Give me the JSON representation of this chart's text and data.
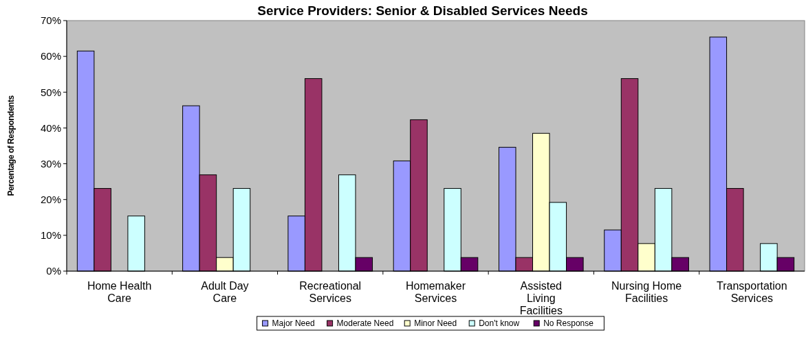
{
  "chart_data": {
    "type": "bar",
    "title": "Service Providers: Senior & Disabled Services Needs",
    "ylabel": "Percentage of Respondents",
    "categories": [
      "Home Health Care",
      "Adult Day Care",
      "Recreational Services",
      "Homemaker Services",
      "Assisted Living Facilities",
      "Nursing Home Facilities",
      "Transportation Services"
    ],
    "series": [
      {
        "name": "Major Need",
        "color": "#9999ff",
        "values": [
          61.5,
          46.2,
          15.4,
          30.8,
          34.6,
          11.5,
          65.4
        ]
      },
      {
        "name": "Moderate Need",
        "color": "#993366",
        "values": [
          23.1,
          26.9,
          53.8,
          42.3,
          3.8,
          53.8,
          23.1
        ]
      },
      {
        "name": "Minor Need",
        "color": "#ffffcc",
        "values": [
          null,
          3.8,
          null,
          null,
          38.5,
          7.7,
          null
        ]
      },
      {
        "name": "Don't know",
        "color": "#ccffff",
        "values": [
          15.4,
          23.1,
          26.9,
          23.1,
          19.2,
          23.1,
          7.7
        ]
      },
      {
        "name": "No Response",
        "color": "#660066",
        "values": [
          null,
          null,
          3.8,
          3.8,
          3.8,
          3.8,
          3.8
        ]
      }
    ],
    "ylim": [
      0,
      70
    ],
    "yticks": [
      {
        "value": 0,
        "label": "0%"
      },
      {
        "value": 10,
        "label": "10%"
      },
      {
        "value": 20,
        "label": "20%"
      },
      {
        "value": 30,
        "label": "30%"
      },
      {
        "value": 40,
        "label": "40%"
      },
      {
        "value": 50,
        "label": "50%"
      },
      {
        "value": 60,
        "label": "60%"
      },
      {
        "value": 70,
        "label": "70%"
      }
    ],
    "grid": false,
    "legend": "bottom"
  }
}
